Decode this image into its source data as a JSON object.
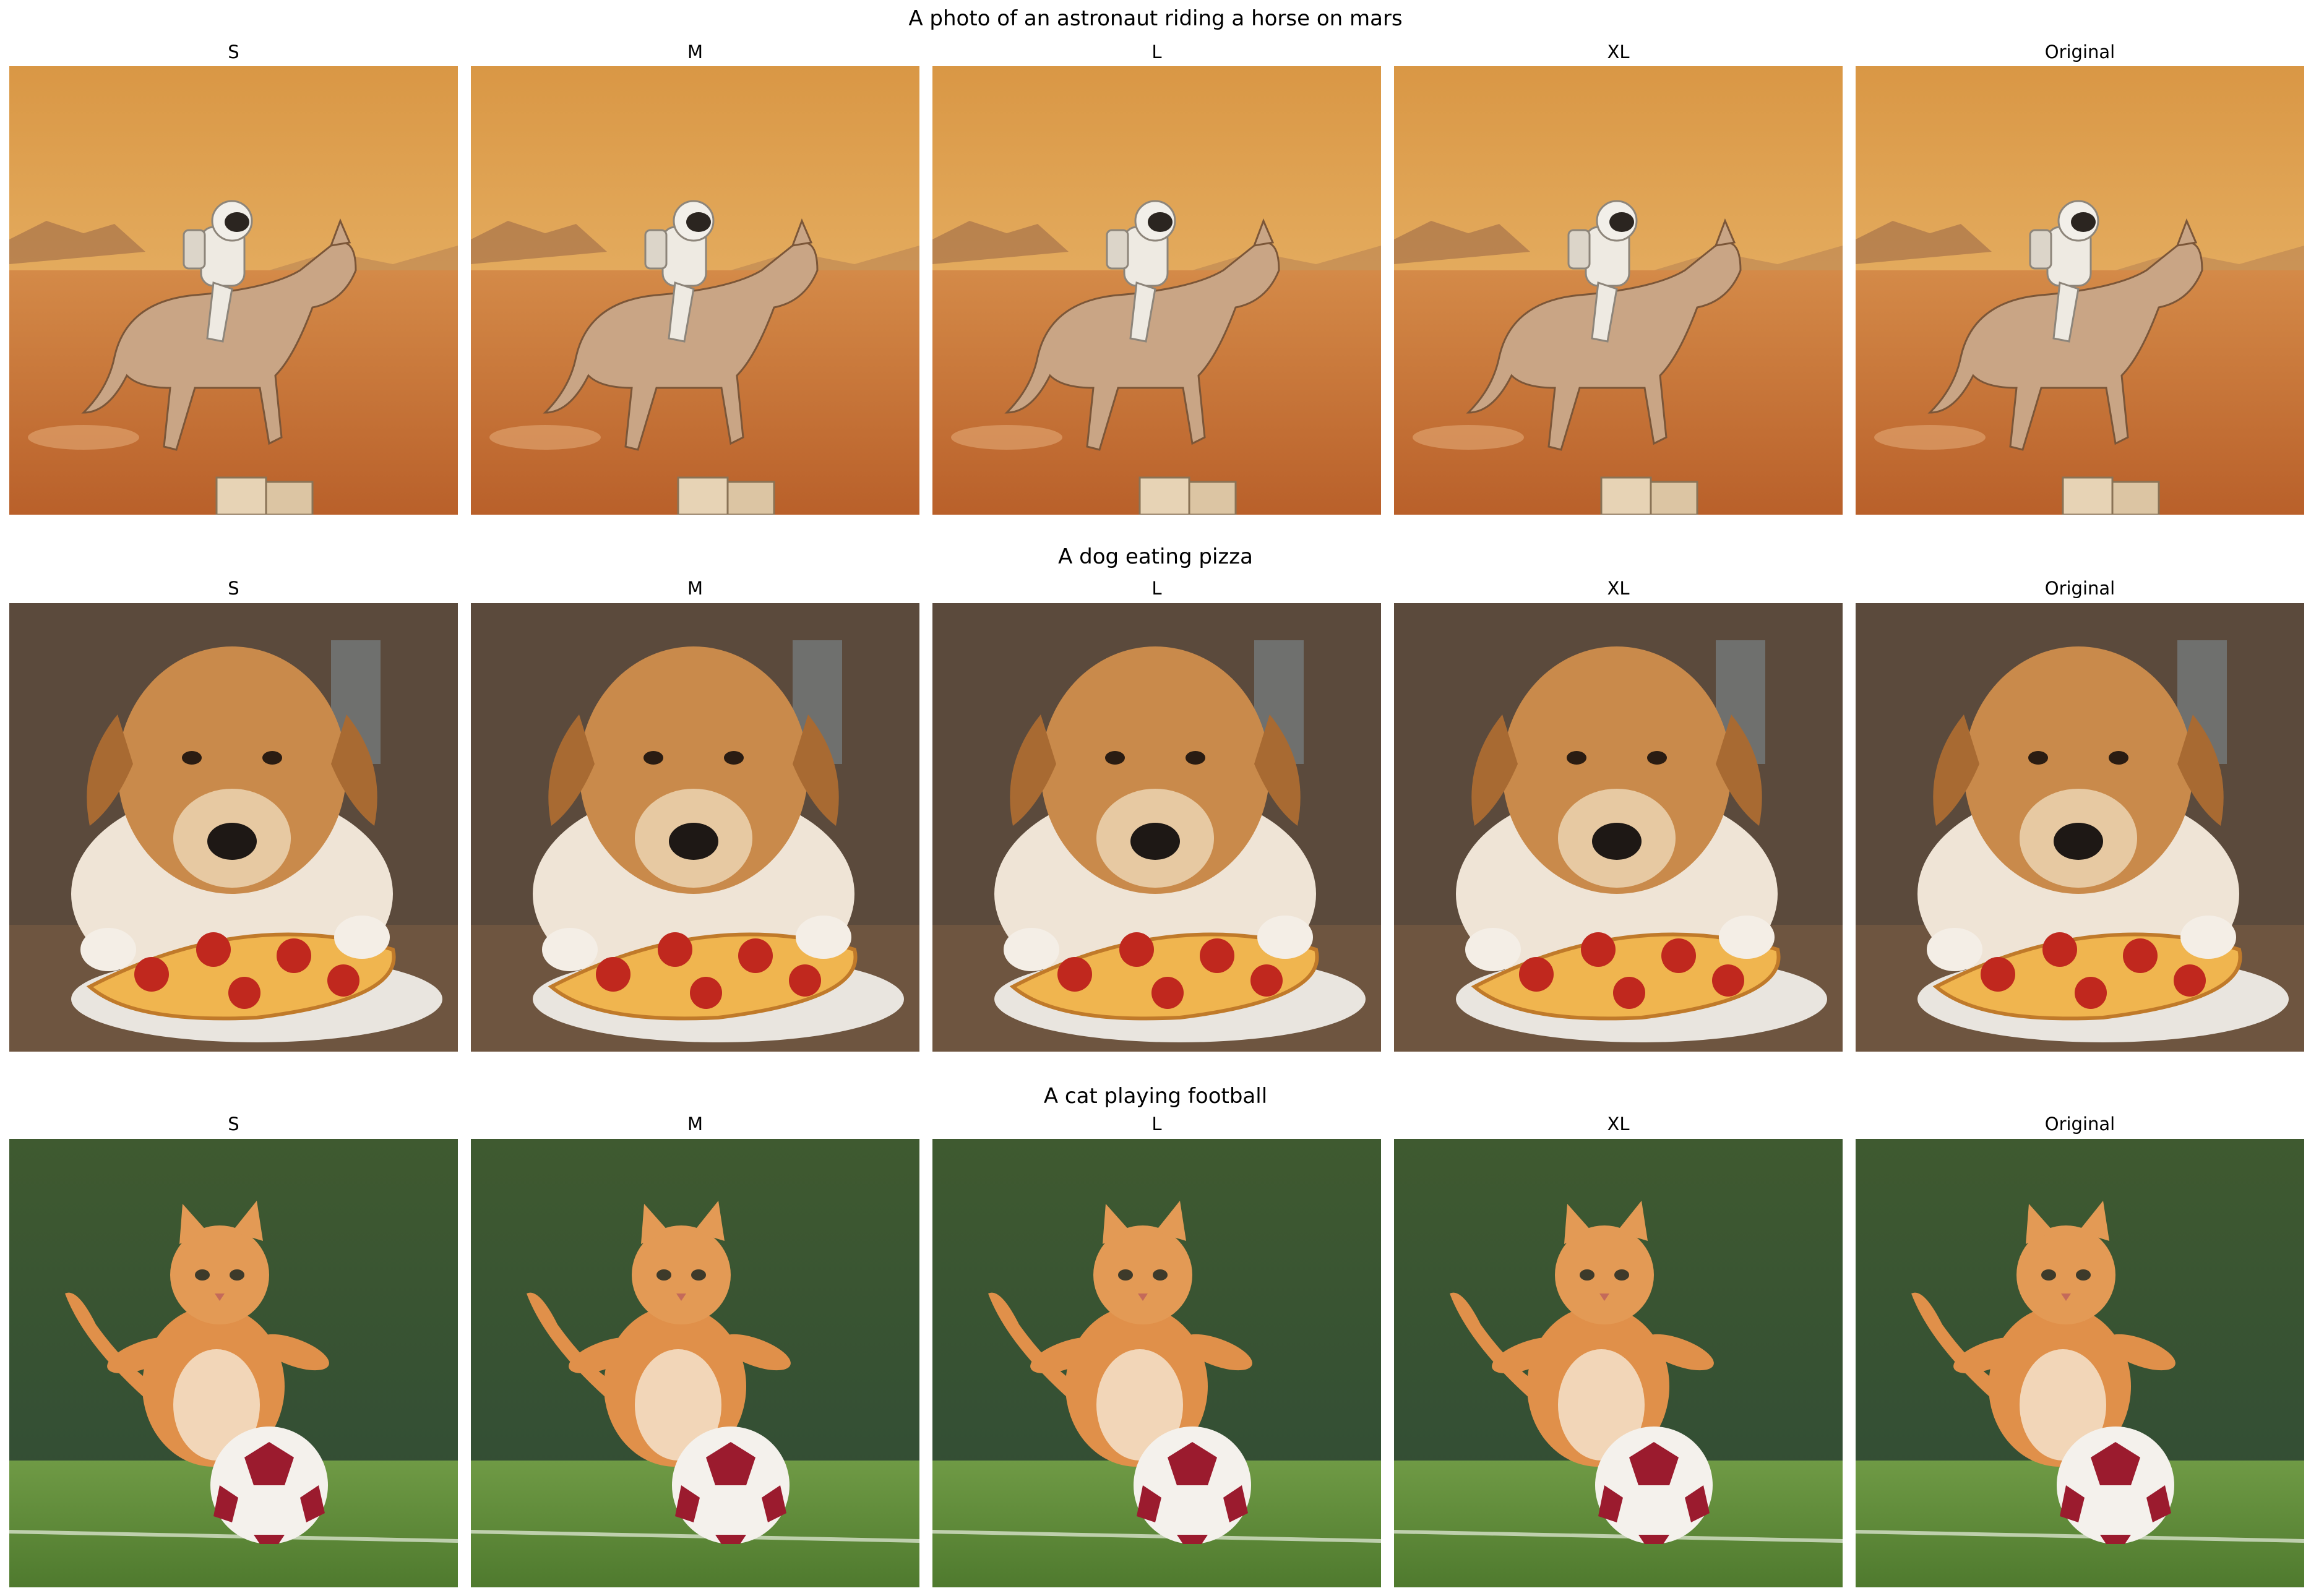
{
  "rows": [
    {
      "title": "A photo of an astronaut riding a horse on mars",
      "scene": "mars",
      "columns": [
        {
          "label": "S"
        },
        {
          "label": "M"
        },
        {
          "label": "L"
        },
        {
          "label": "XL"
        },
        {
          "label": "Original"
        }
      ]
    },
    {
      "title": "A dog eating pizza",
      "scene": "dog",
      "columns": [
        {
          "label": "S"
        },
        {
          "label": "M"
        },
        {
          "label": "L"
        },
        {
          "label": "XL"
        },
        {
          "label": "Original"
        }
      ]
    },
    {
      "title": "A cat playing football",
      "scene": "cat",
      "columns": [
        {
          "label": "S"
        },
        {
          "label": "M"
        },
        {
          "label": "L"
        },
        {
          "label": "XL"
        },
        {
          "label": "Original"
        }
      ]
    }
  ],
  "colors": {
    "mars_sky": "#e9b25e",
    "mars_ground": "#d17a3a",
    "dog_fur": "#c98a4b",
    "pizza_red": "#c0281e",
    "grass": "#5e8f3a",
    "cat_fur": "#e0904a",
    "ball_red": "#9b1b2e"
  }
}
